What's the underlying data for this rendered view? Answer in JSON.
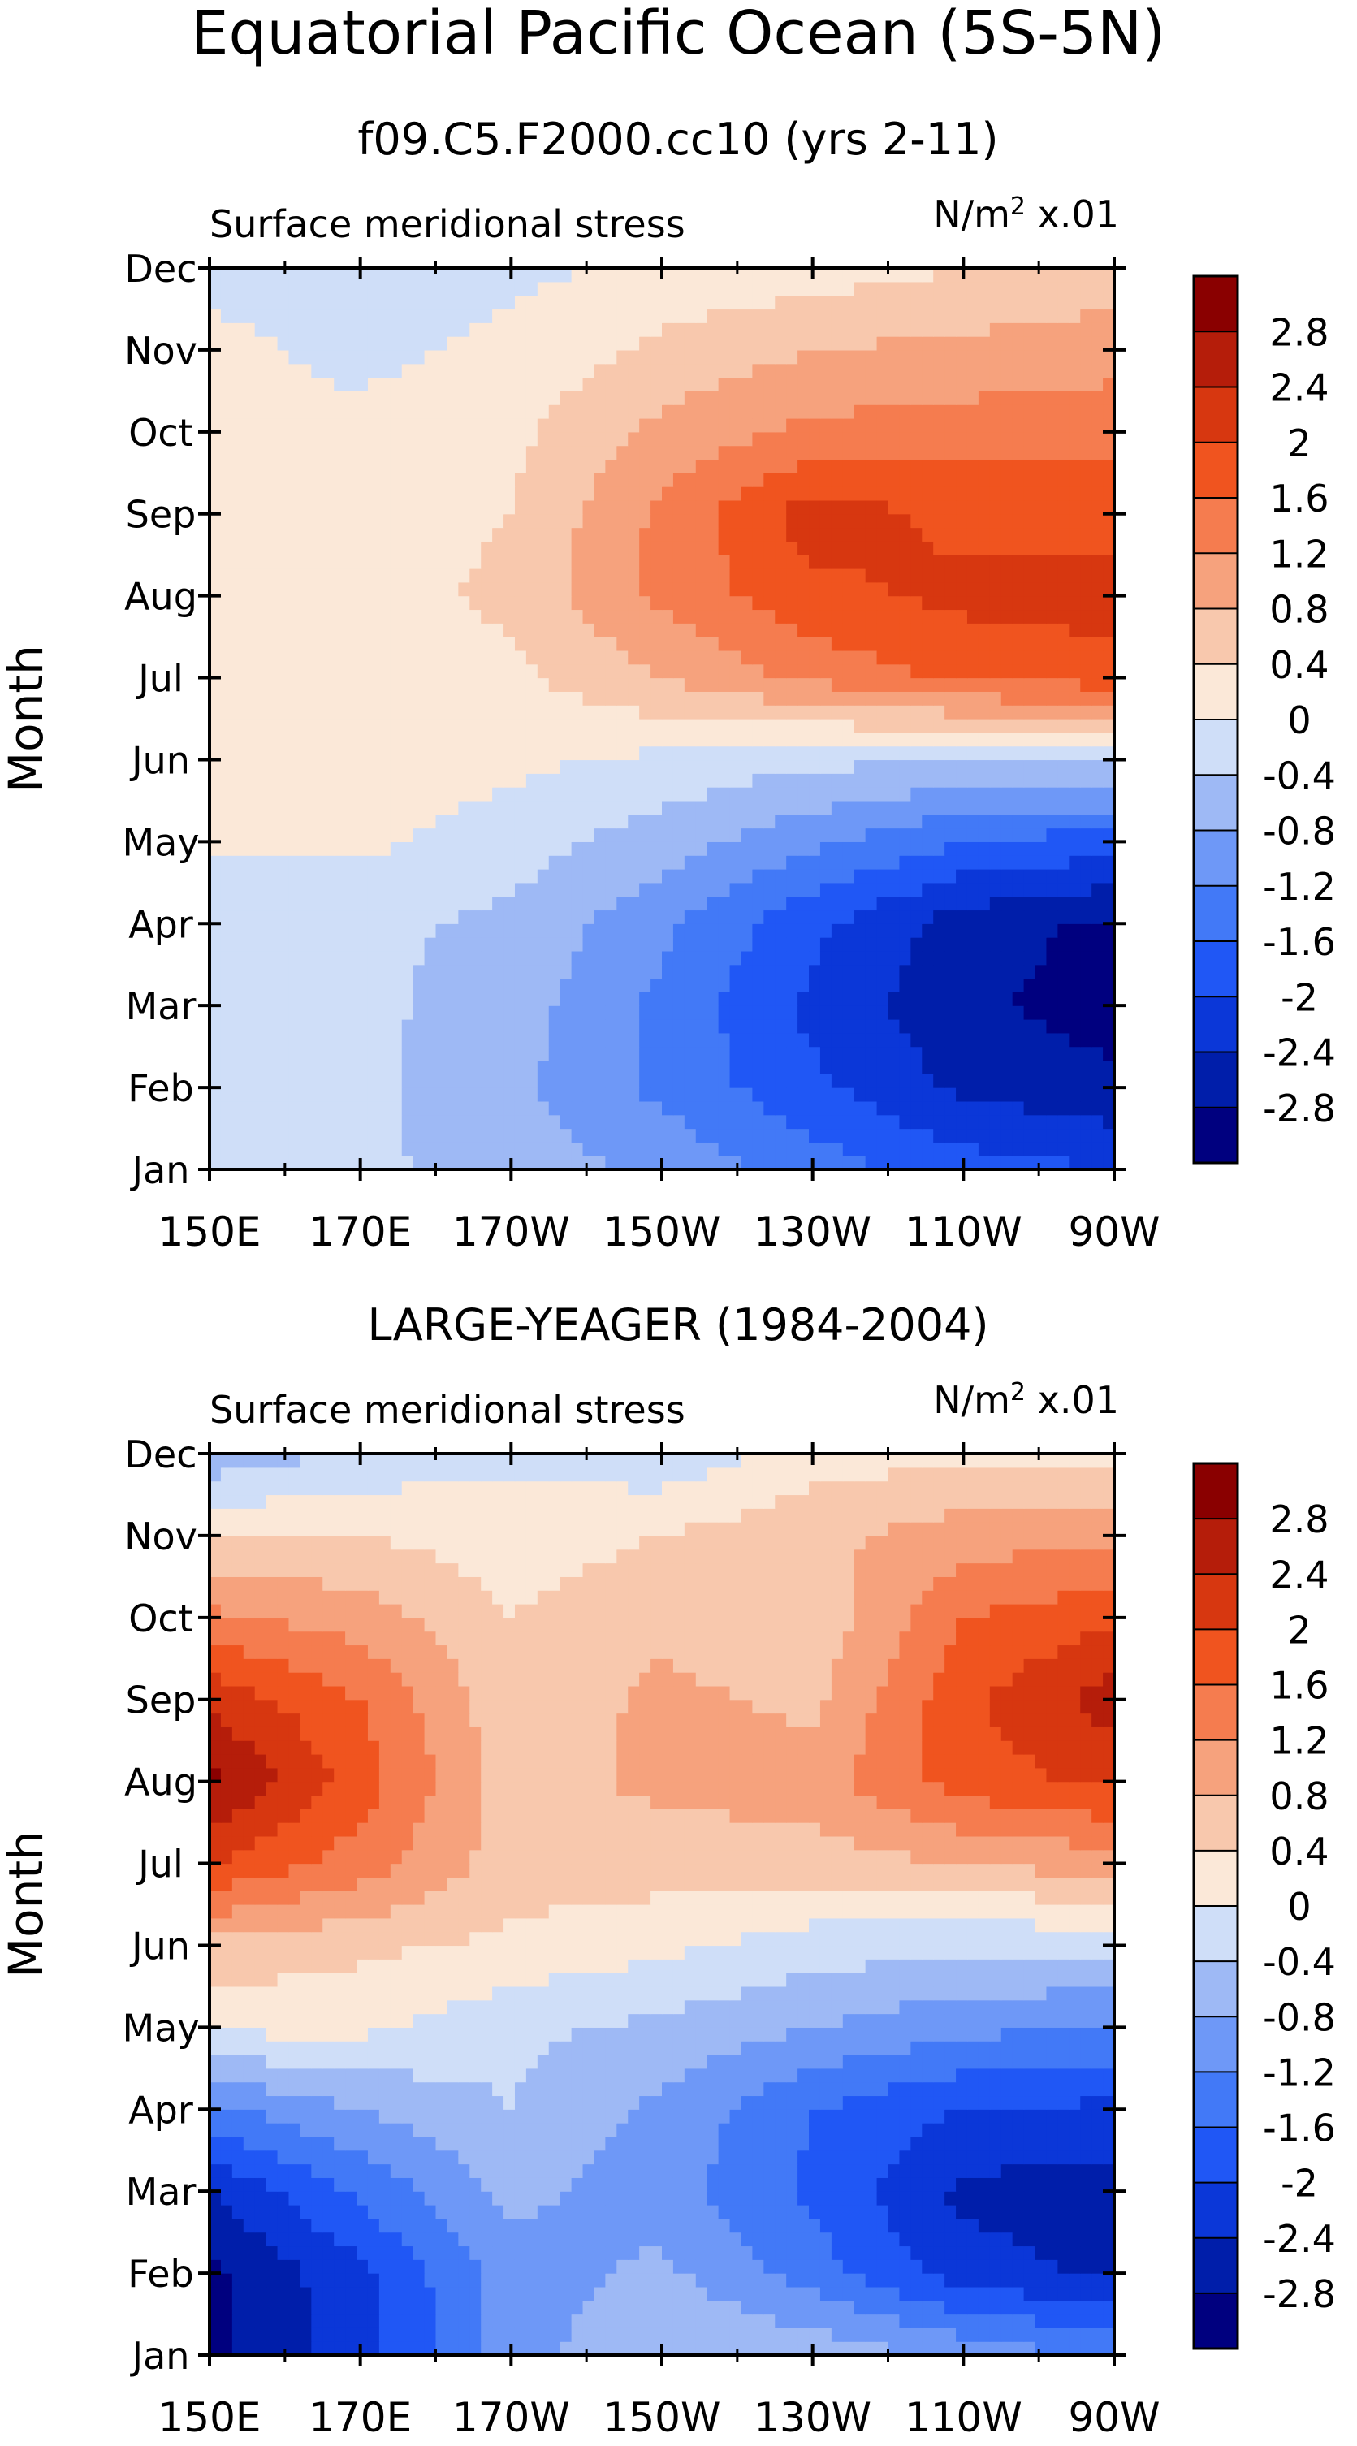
{
  "figure": {
    "title": "Equatorial Pacific Ocean (5S-5N)"
  },
  "panels": [
    {
      "title": "f09.C5.F2000.cc10 (yrs 2-11)",
      "left_label": "Surface meridional stress",
      "units_prefix": "N/m",
      "units_exp": "2",
      "units_suffix": " x.01"
    },
    {
      "title": "LARGE-YEAGER (1984-2004)",
      "left_label": "Surface meridional stress",
      "units_prefix": "N/m",
      "units_exp": "2",
      "units_suffix": " x.01"
    }
  ],
  "colorbar": {
    "colors": [
      "#00007f",
      "#001eaa",
      "#0b37d8",
      "#2057f5",
      "#4279f7",
      "#6e98f7",
      "#9eb9f5",
      "#cfdef8",
      "#fbe8d8",
      "#f8c8ad",
      "#f6a27d",
      "#f57c4f",
      "#f0541f",
      "#d73710",
      "#b51d0a",
      "#8a0000"
    ],
    "tick_labels": [
      "-2.8",
      "-2.4",
      "-2",
      "-1.6",
      "-1.2",
      "-0.8",
      "-0.4",
      "0",
      "0.4",
      "0.8",
      "1.2",
      "1.6",
      "2",
      "2.4",
      "2.8"
    ]
  },
  "chart_data": [
    {
      "type": "heatmap",
      "title": "f09.C5.F2000.cc10 (yrs 2-11)",
      "subtitle": "Surface meridional stress",
      "units": "N/m^2 x.01",
      "xlabel": "",
      "ylabel": "Month",
      "x": [
        150,
        170,
        190,
        210,
        230,
        250,
        270
      ],
      "x_tick_labels": [
        "150E",
        "170E",
        "170W",
        "150W",
        "130W",
        "110W",
        "90W"
      ],
      "y": [
        "Jan",
        "Feb",
        "Mar",
        "Apr",
        "May",
        "Jun",
        "Jul",
        "Aug",
        "Sep",
        "Oct",
        "Nov",
        "Dec"
      ],
      "levels": [
        -2.8,
        -2.4,
        -2,
        -1.6,
        -1.2,
        -0.8,
        -0.4,
        0,
        0.4,
        0.8,
        1.2,
        1.6,
        2,
        2.4,
        2.8
      ],
      "z": [
        [
          -0.3,
          -0.3,
          -0.6,
          -0.9,
          -1.4,
          -1.8,
          -2.0
        ],
        [
          -0.3,
          -0.3,
          -0.7,
          -1.3,
          -1.9,
          -2.5,
          -2.7
        ],
        [
          -0.3,
          -0.3,
          -0.6,
          -1.3,
          -2.1,
          -2.7,
          -3.0
        ],
        [
          -0.3,
          -0.3,
          -0.5,
          -1.1,
          -1.9,
          -2.6,
          -2.9
        ],
        [
          0.1,
          0.1,
          -0.2,
          -0.6,
          -1.1,
          -1.6,
          -1.8
        ],
        [
          0.2,
          0.2,
          0.1,
          -0.1,
          -0.3,
          -0.4,
          -0.3
        ],
        [
          0.3,
          0.2,
          0.3,
          0.8,
          1.3,
          1.7,
          1.8
        ],
        [
          0.3,
          0.2,
          0.5,
          1.3,
          1.9,
          2.1,
          2.2
        ],
        [
          0.2,
          0.2,
          0.4,
          1.3,
          2.2,
          1.9,
          1.8
        ],
        [
          0.1,
          0.1,
          0.3,
          0.9,
          1.3,
          1.4,
          1.5
        ],
        [
          0.1,
          -0.1,
          0.1,
          0.5,
          0.8,
          0.9,
          1.0
        ],
        [
          -0.1,
          -0.2,
          -0.1,
          0.1,
          0.2,
          0.4,
          0.6
        ]
      ]
    },
    {
      "type": "heatmap",
      "title": "LARGE-YEAGER (1984-2004)",
      "subtitle": "Surface meridional stress",
      "units": "N/m^2 x.01",
      "xlabel": "",
      "ylabel": "Month",
      "x": [
        150,
        170,
        190,
        210,
        230,
        250,
        270
      ],
      "x_tick_labels": [
        "150E",
        "170E",
        "170W",
        "150W",
        "130W",
        "110W",
        "90W"
      ],
      "y": [
        "Jan",
        "Feb",
        "Mar",
        "Apr",
        "May",
        "Jun",
        "Jul",
        "Aug",
        "Sep",
        "Oct",
        "Nov",
        "Dec"
      ],
      "levels": [
        -2.8,
        -2.4,
        -2,
        -1.6,
        -1.2,
        -0.8,
        -0.4,
        0,
        0.4,
        0.8,
        1.2,
        1.6,
        2,
        2.4,
        2.8
      ],
      "z": [
        [
          -2.9,
          -2.2,
          -1.0,
          -0.4,
          -0.5,
          -0.9,
          -1.3
        ],
        [
          -2.9,
          -2.1,
          -1.0,
          -0.7,
          -1.4,
          -2.2,
          -2.5
        ],
        [
          -2.4,
          -1.5,
          -0.7,
          -1.0,
          -1.7,
          -2.5,
          -2.6
        ],
        [
          -1.3,
          -0.8,
          -0.4,
          -0.9,
          -1.6,
          -2.0,
          -2.1
        ],
        [
          0.1,
          0.1,
          -0.3,
          -0.5,
          -0.8,
          -1.1,
          -1.2
        ],
        [
          0.7,
          0.5,
          0.3,
          0.1,
          -0.2,
          -0.3,
          -0.3
        ],
        [
          2.0,
          1.4,
          0.6,
          0.6,
          0.6,
          0.8,
          1.0
        ],
        [
          2.9,
          1.8,
          0.6,
          0.9,
          1.0,
          1.8,
          2.1
        ],
        [
          2.3,
          1.6,
          0.5,
          0.9,
          0.7,
          1.9,
          2.6
        ],
        [
          1.3,
          1.0,
          0.4,
          0.7,
          0.5,
          1.6,
          1.9
        ],
        [
          0.4,
          0.4,
          0.2,
          0.4,
          0.7,
          1.0,
          1.1
        ],
        [
          -0.7,
          -0.3,
          -0.1,
          -0.3,
          0.2,
          0.3,
          0.2
        ]
      ]
    }
  ]
}
